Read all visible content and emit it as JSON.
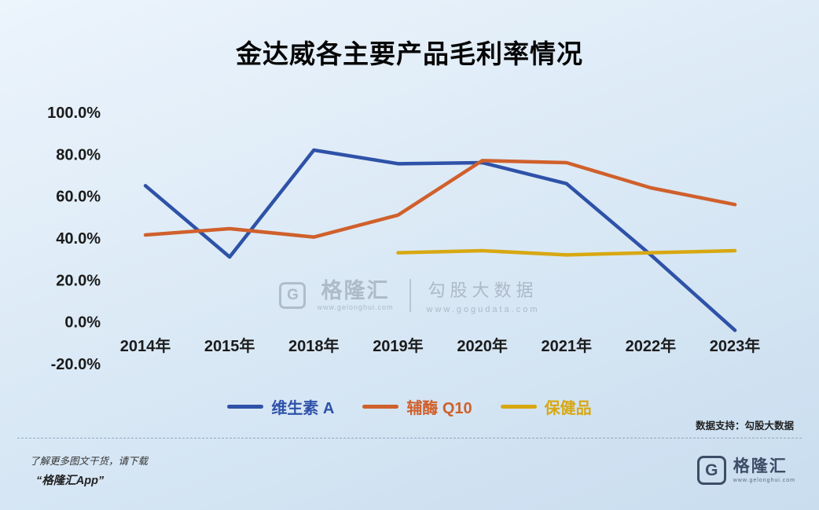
{
  "title": "金达威各主要产品毛利率情况",
  "chart_data": {
    "type": "line",
    "categories": [
      "2014年",
      "2015年",
      "2018年",
      "2019年",
      "2020年",
      "2021年",
      "2022年",
      "2023年"
    ],
    "series": [
      {
        "name": "维生素 A",
        "color": "#2e52a8",
        "values": [
          65,
          31,
          82,
          75.5,
          76,
          66,
          32,
          -4
        ]
      },
      {
        "name": "辅酶 Q10",
        "color": "#d0602c",
        "values": [
          41.5,
          44.5,
          40.5,
          51,
          77,
          76,
          64,
          56
        ]
      },
      {
        "name": "保健品",
        "color": "#d8a812",
        "values": [
          null,
          null,
          null,
          33,
          34,
          32,
          33,
          34
        ]
      }
    ],
    "ylim": [
      -20,
      100
    ],
    "ytick_step": 20,
    "ytick_labels": [
      "100.0%",
      "80.0%",
      "60.0%",
      "40.0%",
      "20.0%",
      "0.0%",
      "-20.0%"
    ],
    "legend_position": "bottom",
    "grid": false
  },
  "watermark": {
    "logo_letter": "G",
    "brand": "格隆汇",
    "brand_url": "www.gelonghui.com",
    "right_text": "勾股大数据",
    "right_url": "www.gogudata.com"
  },
  "source_note": "数据支持：勾股大数据",
  "footer": {
    "line1": "了解更多图文干货，请下载",
    "line2": "“格隆汇App”",
    "logo_letter": "G",
    "brand": "格隆汇",
    "brand_url": "www.gelonghui.com"
  }
}
